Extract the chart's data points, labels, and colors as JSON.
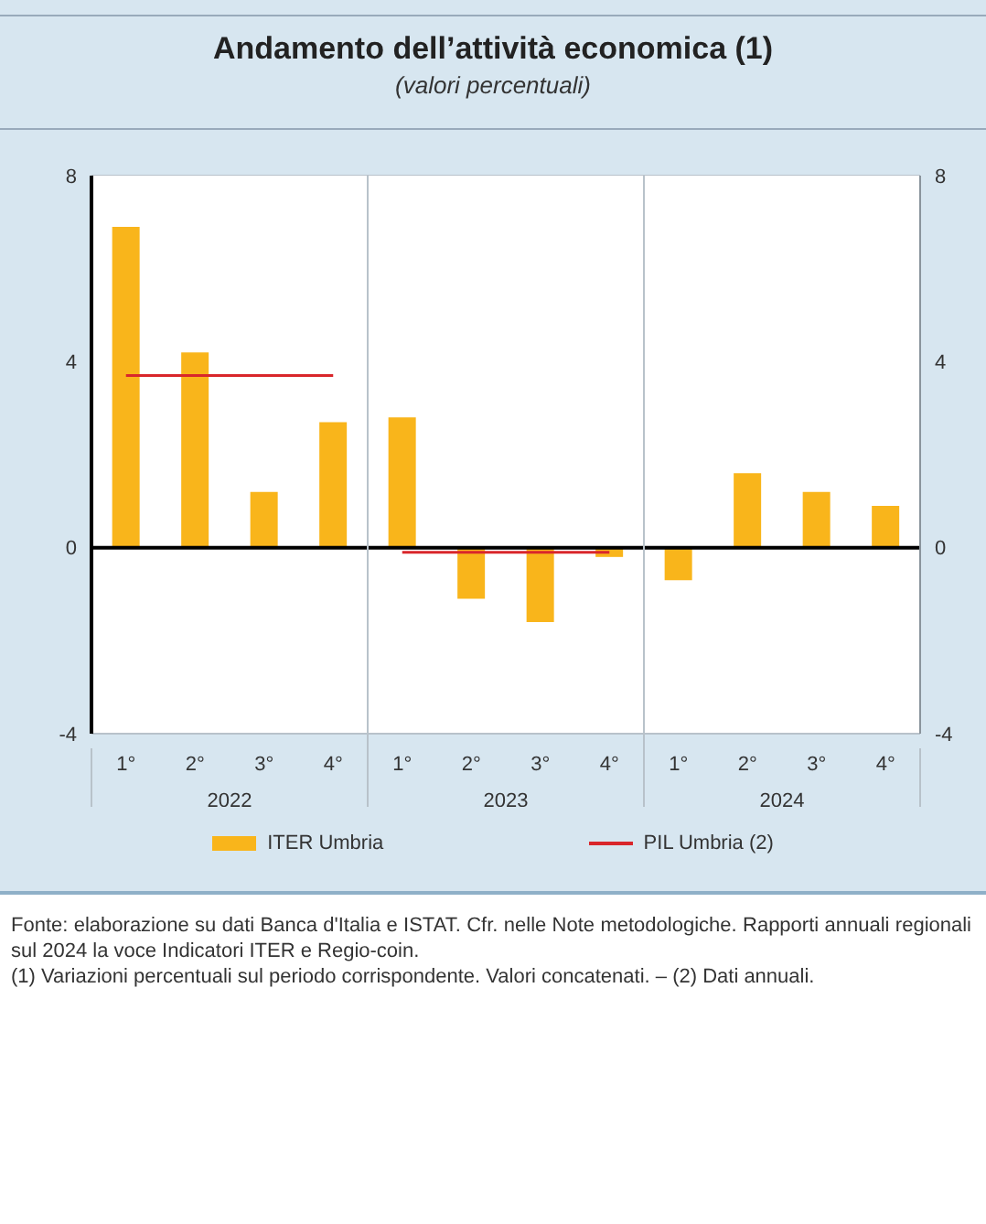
{
  "chart_data": {
    "type": "bar",
    "title": "Andamento dell’attività economica (1)",
    "subtitle": "(valori percentuali)",
    "categories": [
      "1°",
      "2°",
      "3°",
      "4°",
      "1°",
      "2°",
      "3°",
      "4°",
      "1°",
      "2°",
      "3°",
      "4°"
    ],
    "series": [
      {
        "name": "ITER Umbria",
        "color": "#f9b51b",
        "values": [
          6.9,
          4.2,
          1.2,
          2.7,
          2.8,
          -1.1,
          -1.6,
          -0.2,
          -0.7,
          1.6,
          1.2,
          0.9
        ]
      },
      {
        "name": "PIL Umbria (2)",
        "type": "line",
        "color": "#d9262b",
        "values": [
          3.7,
          3.7,
          3.7,
          3.7,
          -0.1,
          -0.1,
          -0.1,
          -0.1,
          null,
          null,
          null,
          null
        ]
      }
    ],
    "ylim": [
      -4,
      8
    ],
    "yticks": [
      -4,
      0,
      4,
      8
    ],
    "y2lim": [
      -4,
      8
    ],
    "y2ticks": [
      -4,
      0,
      4,
      8
    ],
    "grid": true,
    "legend": "bottom",
    "marker": "none",
    "annotations": [
      "2022",
      "2023",
      "2024",
      "Fonte: elaborazione su dati Banca d'Italia e ISTAT. Cfr. nelle Note metodologiche. Rapporti annuali regionali sul 2024 la voce Indicatori ITER e Regio-coin.",
      "(1) Variazioni percentuali sul periodo corrispondente. Valori concatenati. – (2) Dati annuali."
    ]
  }
}
